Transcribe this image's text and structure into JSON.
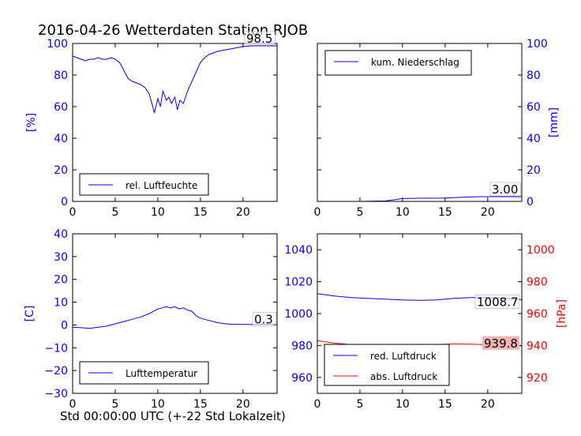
{
  "title": "2016-04-26 Wetterdaten Station RJOB",
  "xlabel": "Std 00:00:00 UTC (+-22 Std Lokalzeit)",
  "colors": {
    "blue": "#0000ff",
    "red": "#ff0000",
    "black": "#000000"
  },
  "chart_data": [
    {
      "id": "humidity",
      "type": "line",
      "x_ticks": [
        "0",
        "5",
        "10",
        "15",
        "20"
      ],
      "y_ticks": [
        "0",
        "20",
        "40",
        "60",
        "80",
        "100"
      ],
      "ylabel": "[%]",
      "xlim": [
        0,
        24
      ],
      "ylim": [
        0,
        100
      ],
      "annotation": "98.5",
      "legend": [
        "rel. Luftfeuchte"
      ],
      "legend_position": "lower-left",
      "series": [
        {
          "name": "rel. Luftfeuchte",
          "color": "#0000ff",
          "x": [
            0,
            0.5,
            1,
            1.5,
            2,
            2.5,
            3,
            3.5,
            4,
            4.5,
            5,
            5.5,
            6,
            6.5,
            7,
            7.5,
            8,
            8.5,
            9,
            9.3,
            9.6,
            10,
            10.3,
            10.6,
            11,
            11.3,
            11.6,
            12,
            12.3,
            12.6,
            13,
            13.5,
            14,
            14.5,
            15,
            15.5,
            16,
            17,
            18,
            19,
            20,
            21,
            22,
            23,
            24
          ],
          "y": [
            92,
            91,
            90,
            89,
            90,
            90,
            91,
            90,
            90,
            91,
            90,
            88,
            83,
            78,
            76,
            75,
            74,
            72,
            68,
            62,
            56,
            65,
            60,
            70,
            64,
            66,
            62,
            66,
            58,
            64,
            62,
            70,
            76,
            82,
            88,
            91,
            93,
            95,
            96,
            97,
            98,
            98.5,
            98.5,
            98.5,
            98.5
          ]
        }
      ]
    },
    {
      "id": "precipitation",
      "type": "line",
      "x_ticks": [
        "0",
        "5",
        "10",
        "15",
        "20"
      ],
      "y_ticks": [
        "0",
        "20",
        "40",
        "60",
        "80",
        "100"
      ],
      "ylabel": "[mm]",
      "xlim": [
        0,
        24
      ],
      "ylim": [
        0,
        100
      ],
      "annotation": "3.00",
      "legend": [
        "kum. Niederschlag"
      ],
      "legend_position": "upper-left",
      "series": [
        {
          "name": "kum. Niederschlag",
          "color": "#0000ff",
          "x": [
            0,
            5,
            8,
            9,
            10,
            12,
            14,
            15,
            16,
            17,
            18,
            19,
            20,
            22,
            24
          ],
          "y": [
            0,
            0,
            0.3,
            1,
            1.8,
            2,
            2,
            2.1,
            2.4,
            2.6,
            2.8,
            3.0,
            3.0,
            3.0,
            3.0
          ]
        }
      ]
    },
    {
      "id": "temperature",
      "type": "line",
      "x_ticks": [
        "0",
        "5",
        "10",
        "15",
        "20"
      ],
      "y_ticks": [
        "40",
        "30",
        "20",
        "10",
        "0",
        "−10",
        "−20",
        "−30"
      ],
      "ylabel": "[C]",
      "xlim": [
        0,
        24
      ],
      "ylim": [
        -30,
        40
      ],
      "annotation": "0.3",
      "legend": [
        "Lufttemperatur"
      ],
      "legend_position": "lower-left",
      "series": [
        {
          "name": "Lufttemperatur",
          "color": "#0000ff",
          "x": [
            0,
            1,
            2,
            3,
            4,
            5,
            6,
            7,
            8,
            9,
            9.5,
            10,
            10.5,
            11,
            11.5,
            12,
            12.5,
            13,
            13.5,
            14,
            14.5,
            15,
            16,
            17,
            18,
            19,
            20,
            21,
            22,
            23,
            24
          ],
          "y": [
            -1,
            -1.2,
            -1.5,
            -1,
            -0.5,
            0.5,
            1.5,
            2.5,
            3.5,
            5,
            6,
            7,
            7.5,
            8,
            7.5,
            8,
            7,
            7.5,
            6.5,
            6,
            4,
            3,
            2,
            1,
            0.5,
            0.3,
            0.3,
            0.2,
            0.3,
            0.3,
            0.3
          ]
        }
      ]
    },
    {
      "id": "pressure",
      "type": "line",
      "x_ticks": [
        "0",
        "5",
        "10",
        "15",
        "20"
      ],
      "y_ticks": [
        "960",
        "980",
        "1000",
        "1020",
        "1040"
      ],
      "y2_ticks": [
        "920",
        "940",
        "960",
        "980",
        "1000"
      ],
      "ylabel": "[hPa]",
      "xlim": [
        0,
        24
      ],
      "ylim": [
        950,
        1050
      ],
      "y2lim": [
        910,
        1010
      ],
      "annotations": [
        "1008.7",
        "939.8"
      ],
      "legend": [
        "red. Luftdruck",
        "abs. Luftdruck"
      ],
      "legend_position": "lower-left",
      "series": [
        {
          "name": "red. Luftdruck",
          "color": "#0000ff",
          "axis": "left",
          "x": [
            0,
            2,
            4,
            6,
            8,
            10,
            12,
            14,
            16,
            18,
            20,
            22,
            24
          ],
          "y": [
            1012.5,
            1011,
            1010,
            1009.5,
            1009,
            1008.5,
            1008.3,
            1008.5,
            1009.5,
            1010,
            1010,
            1009.5,
            1008.7
          ]
        },
        {
          "name": "abs. Luftdruck",
          "color": "#ff0000",
          "axis": "right",
          "x": [
            0,
            2,
            4,
            6,
            8,
            10,
            12,
            14,
            16,
            18,
            20,
            22,
            24
          ],
          "y": [
            943,
            941.5,
            940.5,
            940.3,
            940.5,
            940.5,
            940.3,
            940.5,
            941,
            940.8,
            940.5,
            940.3,
            939.8
          ]
        }
      ]
    }
  ]
}
